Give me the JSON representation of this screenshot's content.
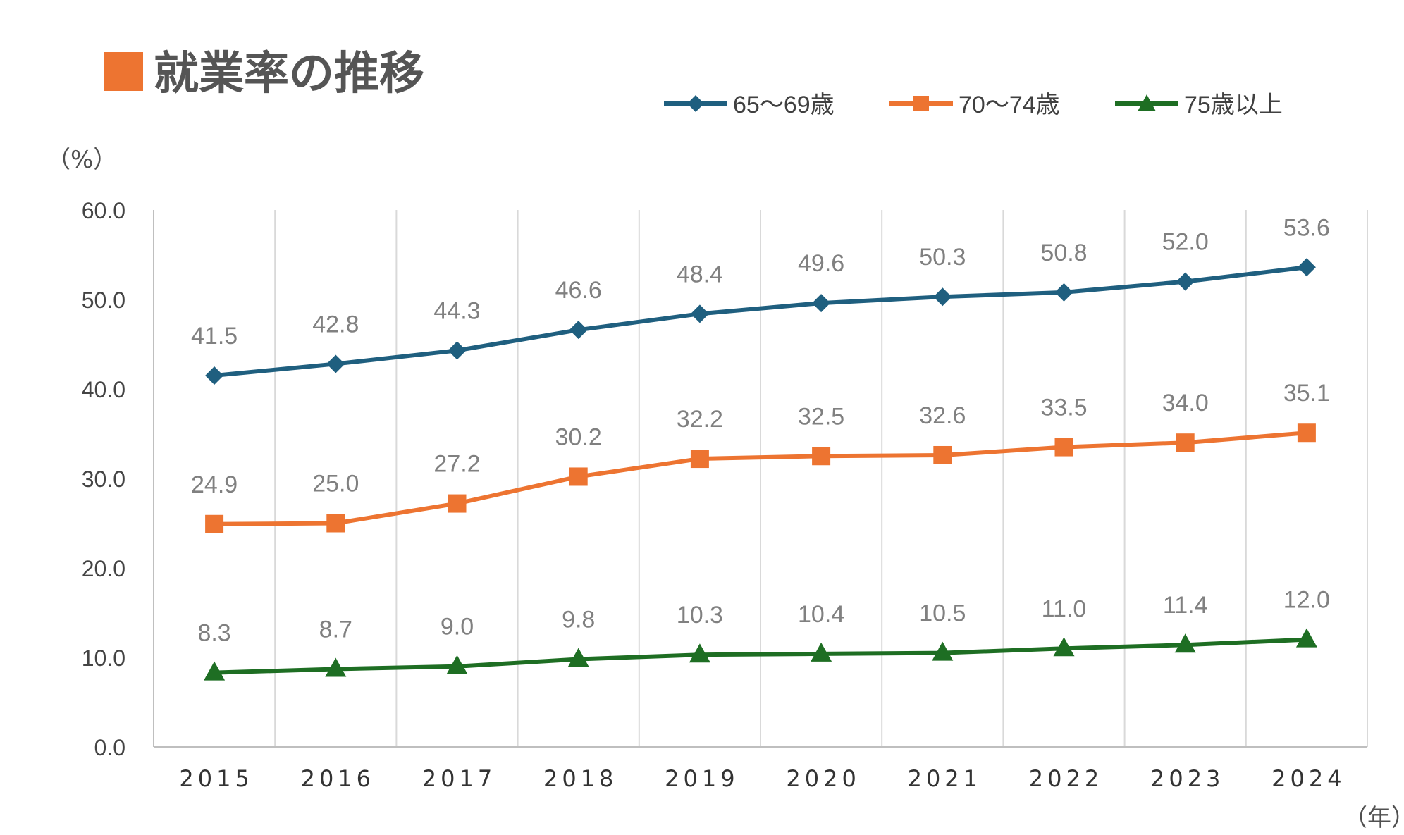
{
  "chart_data": {
    "type": "line",
    "title": "就業率の推移",
    "ylabel": "（%）",
    "xlabel": "（年）",
    "ylim": [
      0,
      60
    ],
    "yticks": [
      "0.0",
      "10.0",
      "20.0",
      "30.0",
      "40.0",
      "50.0",
      "60.0"
    ],
    "categories": [
      "2015",
      "2016",
      "2017",
      "2018",
      "2019",
      "2020",
      "2021",
      "2022",
      "2023",
      "2024"
    ],
    "legend_position": "top-right",
    "grid": true,
    "series": [
      {
        "name": "65〜69歳",
        "marker": "diamond",
        "color": "#1F5F7F",
        "values": [
          41.5,
          42.8,
          44.3,
          46.6,
          48.4,
          49.6,
          50.3,
          50.8,
          52.0,
          53.6
        ],
        "labels": [
          "41.5",
          "42.8",
          "44.3",
          "46.6",
          "48.4",
          "49.6",
          "50.3",
          "50.8",
          "52.0",
          "53.6"
        ]
      },
      {
        "name": "70〜74歳",
        "marker": "square",
        "color": "#ED7431",
        "values": [
          24.9,
          25.0,
          27.2,
          30.2,
          32.2,
          32.5,
          32.6,
          33.5,
          34.0,
          35.1
        ],
        "labels": [
          "24.9",
          "25.0",
          "27.2",
          "30.2",
          "32.2",
          "32.5",
          "32.6",
          "33.5",
          "34.0",
          "35.1"
        ]
      },
      {
        "name": "75歳以上",
        "marker": "triangle",
        "color": "#1E6E23",
        "values": [
          8.3,
          8.7,
          9.0,
          9.8,
          10.3,
          10.4,
          10.5,
          11.0,
          11.4,
          12.0
        ],
        "labels": [
          "8.3",
          "8.7",
          "9.0",
          "9.8",
          "10.3",
          "10.4",
          "10.5",
          "11.0",
          "11.4",
          "12.0"
        ]
      }
    ]
  },
  "title_marker_color": "#ED7431",
  "grid_color": "#D9D9D9",
  "axis_color": "#BFBFBF"
}
